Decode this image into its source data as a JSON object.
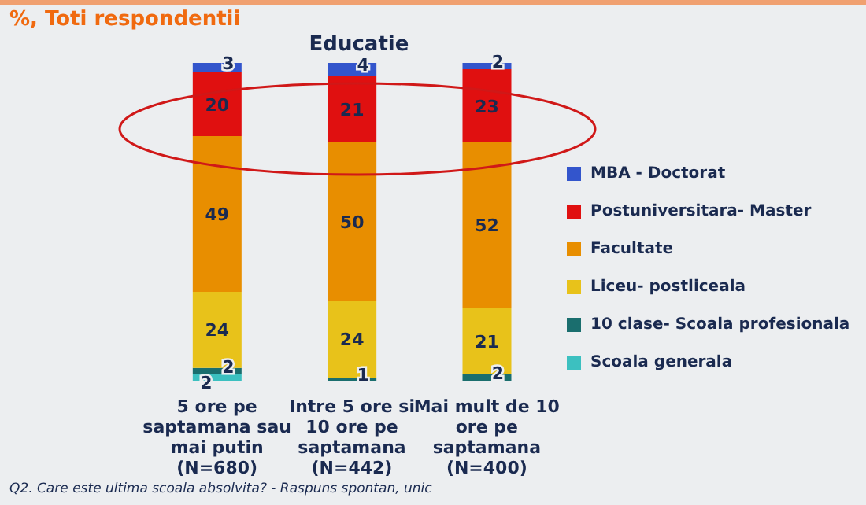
{
  "chart_data": {
    "type": "bar",
    "title": "Educatie",
    "subtitle": "%, Toti respondentii",
    "annotations": [
      "Q2. Care este ultima scoala absolvita? - Raspuns spontan, unic"
    ],
    "categories": [
      "5 ore pe saptamana sau mai putin (N=680)",
      "Intre 5 ore si 10 ore pe saptamana (N=442)",
      "Mai mult de 10 ore pe saptamana (N=400)"
    ],
    "stacked": true,
    "data_labels": true,
    "legend": "right",
    "tick_labels": "x",
    "ylim": [
      0,
      100
    ],
    "series": [
      {
        "name": "Scoala generala",
        "color": "#3cc0c0",
        "values": [
          2,
          null,
          null
        ]
      },
      {
        "name": "10 clase- Scoala profesionala",
        "color": "#1a6e6e",
        "values": [
          2,
          1,
          2
        ]
      },
      {
        "name": "Liceu- postliceala",
        "color": "#e8c21a",
        "values": [
          24,
          24,
          21
        ]
      },
      {
        "name": "Facultate",
        "color": "#e88e00",
        "values": [
          49,
          50,
          52
        ]
      },
      {
        "name": "Postuniversitara- Master",
        "color": "#e01010",
        "values": [
          20,
          21,
          23
        ]
      },
      {
        "name": "MBA - Doctorat",
        "color": "#3355cc",
        "values": [
          3,
          4,
          2
        ]
      }
    ]
  }
}
